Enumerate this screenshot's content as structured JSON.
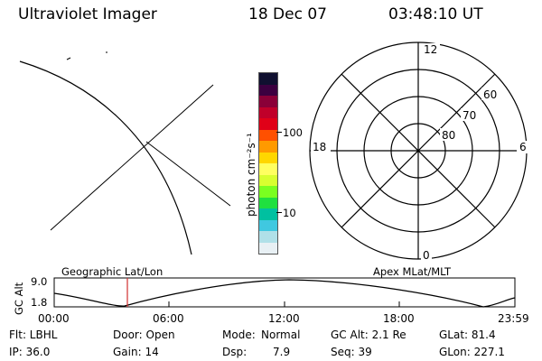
{
  "header": {
    "instrument": "Ultraviolet Imager",
    "date": "18 Dec 07",
    "time": "03:48:10 UT"
  },
  "colorbar": {
    "unit_label": "photon cm⁻²s⁻¹",
    "tick_100": "100",
    "tick_10": "10",
    "colors": [
      "#101030",
      "#3c0040",
      "#8a0038",
      "#c0002a",
      "#e00018",
      "#ff5000",
      "#ff9a00",
      "#ffd700",
      "#ffff60",
      "#d8ff30",
      "#7aff20",
      "#20e040",
      "#00c0a0",
      "#40c8e0",
      "#b0e0e8",
      "#e8f0f4"
    ]
  },
  "polar_plot": {
    "mlt_labels": {
      "top": "12",
      "bottom": "0",
      "left": "18",
      "right": "6"
    },
    "mlat_labels": [
      "60",
      "70",
      "80"
    ]
  },
  "timeline": {
    "left_title": "Geographic Lat/Lon",
    "right_title": "Apex MLat/MLT",
    "ylabel": "GC Alt",
    "y_ticks": [
      "9.0",
      "1.8"
    ],
    "time_ticks": [
      "00:00",
      "06:00",
      "12:00",
      "18:00",
      "23:59"
    ],
    "current_time_color": "#d03030"
  },
  "status": {
    "filter": "Flt: LBHL",
    "door": "Door: Open",
    "mode_label": "Mode:",
    "mode_value": "Normal",
    "gc_alt": "GC Alt: 2.1 Re",
    "glat": "GLat:  81.4",
    "ip": "IP: 36.0",
    "gain": "Gain: 14",
    "dsp_label": "Dsp:",
    "dsp_value": "7.9",
    "seq": "Seq: 39",
    "glon": "GLon: 227.1"
  }
}
